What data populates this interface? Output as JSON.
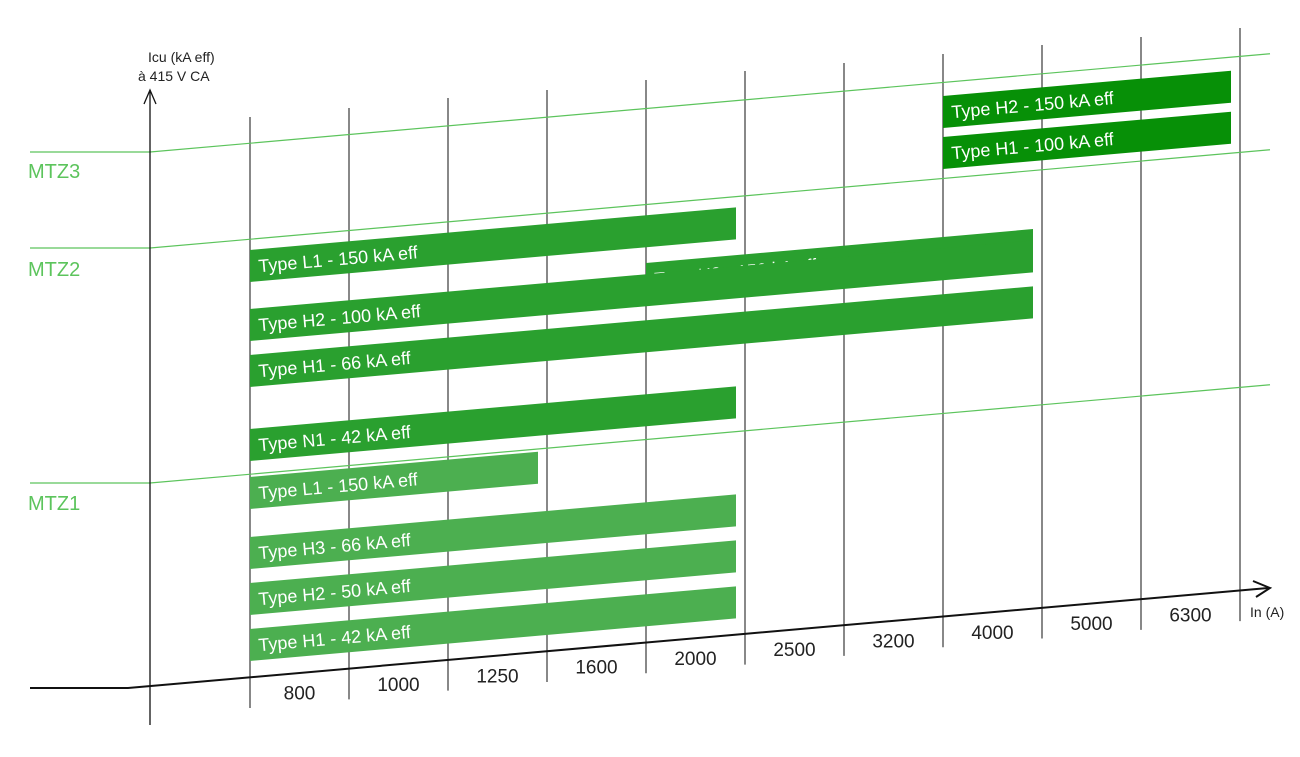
{
  "chart_data": {
    "type": "bar",
    "orientation": "horizontal-range",
    "y_axis_label": [
      "Icu (kA eff)",
      "à 415 V CA"
    ],
    "x_axis_label": "In (A)",
    "categories": [
      "800",
      "1000",
      "1250",
      "1600",
      "2000",
      "2500",
      "3200",
      "4000",
      "5000",
      "6300"
    ],
    "colors": {
      "MTZ1": "#4caf50",
      "MTZ2": "#2aa02f",
      "MTZ3": "#079007",
      "line": "#5cc45c",
      "axis": "#111111"
    },
    "ranges": [
      {
        "name": "MTZ3",
        "bars": [
          {
            "label": "Type H2 - 150 kA eff",
            "from": "4000",
            "to": "6300"
          },
          {
            "label": "Type H1 - 100 kA eff",
            "from": "4000",
            "to": "6300"
          }
        ]
      },
      {
        "name": "MTZ2",
        "bars": [
          {
            "label": "Type L1 - 150 kA eff",
            "from": "800",
            "to": "2000"
          },
          {
            "label": "Type H3 - 150 kA eff",
            "from": "2000",
            "to": "4000"
          },
          {
            "label": "Type H2 - 100 kA eff",
            "from": "800",
            "to": "4000"
          },
          {
            "label": "Type H1 - 66 kA eff",
            "from": "800",
            "to": "4000"
          },
          {
            "label": "Type N1 - 42 kA eff",
            "from": "800",
            "to": "2000"
          }
        ]
      },
      {
        "name": "MTZ1",
        "bars": [
          {
            "label": "Type L1 - 150 kA eff",
            "from": "800",
            "to": "1250"
          },
          {
            "label": "Type H3 - 66 kA eff",
            "from": "800",
            "to": "2000"
          },
          {
            "label": "Type H2 - 50 kA eff",
            "from": "800",
            "to": "2000"
          },
          {
            "label": "Type H1 - 42 kA eff",
            "from": "800",
            "to": "2000"
          }
        ]
      }
    ]
  }
}
